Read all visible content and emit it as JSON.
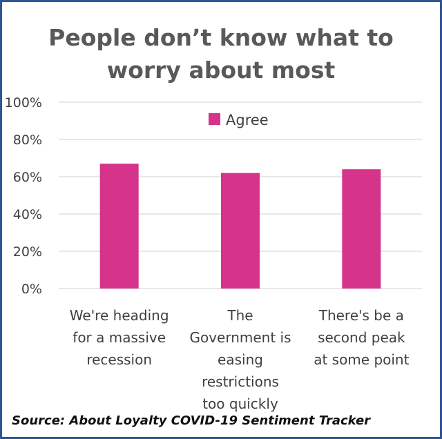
{
  "chart_data": {
    "type": "bar",
    "title_lines": [
      "People don’t know what to",
      "worry about most"
    ],
    "categories": [
      [
        "We're heading",
        "for a massive",
        "recession"
      ],
      [
        "The",
        "Government is",
        "easing",
        "restrictions",
        "too quickly"
      ],
      [
        "There's be a",
        "second peak",
        "at some point"
      ]
    ],
    "series": [
      {
        "name": "Agree",
        "values": [
          67,
          62,
          64
        ],
        "color": "#d6338a"
      }
    ],
    "ylim": [
      0,
      100
    ],
    "yticks": [
      0,
      20,
      40,
      60,
      80,
      100
    ],
    "ytick_labels": [
      "0%",
      "20%",
      "40%",
      "60%",
      "80%",
      "100%"
    ],
    "grid": true,
    "legend_position": "top-center",
    "source": "Source: About Loyalty COVID-19 Sentiment Tracker"
  }
}
